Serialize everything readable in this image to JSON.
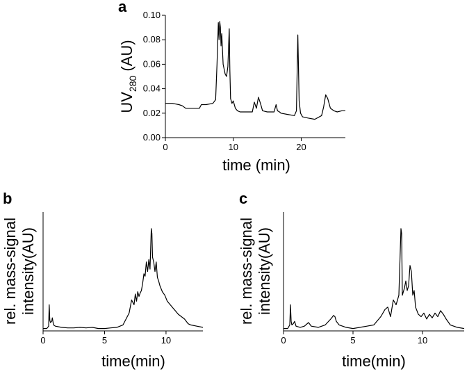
{
  "chart_data": [
    {
      "panel": "a",
      "type": "line",
      "xlabel": "time (min)",
      "ylabel_main": "UV",
      "ylabel_sub": "280",
      "ylabel_unit": " (AU)",
      "xlim": [
        0,
        26.5
      ],
      "ylim": [
        0,
        0.1
      ],
      "xticks": [
        0,
        10,
        20
      ],
      "xtick_labels": [
        "0",
        "10",
        "20"
      ],
      "yticks": [
        0,
        0.02,
        0.04,
        0.06,
        0.08,
        0.1
      ],
      "ytick_labels": [
        "0.00",
        "0.02",
        "0.04",
        "0.06",
        "0.08",
        "0.10"
      ],
      "grid": false,
      "series": [
        {
          "x": [
            0,
            1,
            2,
            2.5,
            3,
            4,
            5,
            5.3,
            6,
            7,
            7.4,
            7.6,
            7.8,
            7.9,
            8.0,
            8.1,
            8.2,
            8.3,
            8.5,
            8.8,
            9.0,
            9.2,
            9.4,
            9.5,
            9.6,
            9.8,
            10,
            10.3,
            10.6,
            11,
            12,
            12.8,
            13.1,
            13.4,
            13.7,
            14.0,
            14.3,
            15,
            16,
            16.3,
            16.5,
            16.8,
            17,
            18,
            19,
            19.3,
            19.5,
            19.7,
            19.9,
            20.2,
            21,
            22,
            23,
            23.3,
            23.6,
            23.9,
            24.3,
            24.8,
            25.3,
            26,
            26.5
          ],
          "y": [
            0.028,
            0.028,
            0.027,
            0.026,
            0.024,
            0.024,
            0.024,
            0.027,
            0.027,
            0.028,
            0.031,
            0.06,
            0.094,
            0.08,
            0.095,
            0.09,
            0.075,
            0.085,
            0.06,
            0.052,
            0.05,
            0.058,
            0.089,
            0.055,
            0.032,
            0.028,
            0.03,
            0.024,
            0.022,
            0.021,
            0.021,
            0.021,
            0.029,
            0.024,
            0.033,
            0.028,
            0.022,
            0.021,
            0.021,
            0.027,
            0.022,
            0.021,
            0.02,
            0.019,
            0.018,
            0.022,
            0.084,
            0.03,
            0.02,
            0.017,
            0.016,
            0.015,
            0.018,
            0.025,
            0.035,
            0.032,
            0.024,
            0.022,
            0.021,
            0.022,
            0.022
          ]
        }
      ]
    },
    {
      "panel": "b",
      "type": "line",
      "xlabel": "time(min)",
      "ylabel_line1": "rel. mass-signal",
      "ylabel_line2": "intensity(AU)",
      "xlim": [
        0,
        13
      ],
      "ylim": [
        0,
        1
      ],
      "xticks": [
        0,
        5,
        10
      ],
      "xtick_labels": [
        "0",
        "5",
        "10"
      ],
      "grid": false,
      "series": [
        {
          "x": [
            0,
            0.3,
            0.45,
            0.5,
            0.55,
            0.6,
            0.7,
            0.75,
            0.85,
            1,
            1.5,
            2,
            2.5,
            3,
            3.5,
            4,
            4.5,
            5,
            5.5,
            6,
            6.5,
            7,
            7.2,
            7.4,
            7.5,
            7.6,
            7.7,
            7.8,
            7.9,
            8.0,
            8.1,
            8.2,
            8.3,
            8.4,
            8.5,
            8.6,
            8.7,
            8.8,
            8.85,
            8.9,
            9.0,
            9.1,
            9.2,
            9.3,
            9.4,
            9.5,
            9.7,
            9.9,
            10.1,
            10.5,
            11,
            11.5,
            11.8,
            12,
            12.5,
            13
          ],
          "y": [
            0.02,
            0.02,
            0.04,
            0.22,
            0.09,
            0.07,
            0.08,
            0.11,
            0.05,
            0.04,
            0.03,
            0.025,
            0.025,
            0.03,
            0.025,
            0.03,
            0.02,
            0.02,
            0.025,
            0.03,
            0.05,
            0.15,
            0.26,
            0.22,
            0.31,
            0.25,
            0.33,
            0.29,
            0.32,
            0.34,
            0.4,
            0.48,
            0.46,
            0.58,
            0.5,
            0.6,
            0.52,
            0.86,
            0.82,
            0.62,
            0.58,
            0.5,
            0.58,
            0.45,
            0.42,
            0.38,
            0.33,
            0.3,
            0.25,
            0.2,
            0.14,
            0.1,
            0.06,
            0.05,
            0.04,
            0.03
          ]
        }
      ]
    },
    {
      "panel": "c",
      "type": "line",
      "xlabel": "time(min)",
      "ylabel_line1": "rel. mass-signal",
      "ylabel_line2": "intensity(AU)",
      "xlim": [
        0,
        13
      ],
      "ylim": [
        0,
        1
      ],
      "xticks": [
        0,
        5,
        10
      ],
      "xtick_labels": [
        "0",
        "5",
        "10"
      ],
      "grid": false,
      "series": [
        {
          "x": [
            0,
            0.3,
            0.45,
            0.5,
            0.55,
            0.6,
            0.7,
            0.8,
            0.9,
            1.2,
            1.5,
            1.8,
            2,
            2.5,
            3,
            3.4,
            3.6,
            3.7,
            3.8,
            4,
            4.5,
            5,
            5.5,
            6,
            6.5,
            7,
            7.3,
            7.5,
            7.7,
            7.9,
            8.1,
            8.3,
            8.45,
            8.5,
            8.55,
            8.7,
            8.8,
            8.9,
            9.0,
            9.1,
            9.2,
            9.3,
            9.4,
            9.5,
            9.7,
            9.9,
            10.1,
            10.3,
            10.5,
            10.7,
            10.9,
            11.1,
            11.3,
            11.5,
            11.7,
            12,
            12.5,
            13
          ],
          "y": [
            0.02,
            0.02,
            0.05,
            0.22,
            0.08,
            0.05,
            0.06,
            0.08,
            0.04,
            0.03,
            0.04,
            0.07,
            0.04,
            0.03,
            0.05,
            0.1,
            0.13,
            0.12,
            0.08,
            0.05,
            0.03,
            0.02,
            0.03,
            0.04,
            0.05,
            0.12,
            0.18,
            0.2,
            0.12,
            0.26,
            0.22,
            0.3,
            0.86,
            0.82,
            0.3,
            0.36,
            0.42,
            0.34,
            0.38,
            0.55,
            0.5,
            0.3,
            0.34,
            0.2,
            0.14,
            0.12,
            0.15,
            0.1,
            0.14,
            0.11,
            0.15,
            0.12,
            0.17,
            0.14,
            0.1,
            0.05,
            0.03,
            0.02
          ]
        }
      ]
    }
  ]
}
